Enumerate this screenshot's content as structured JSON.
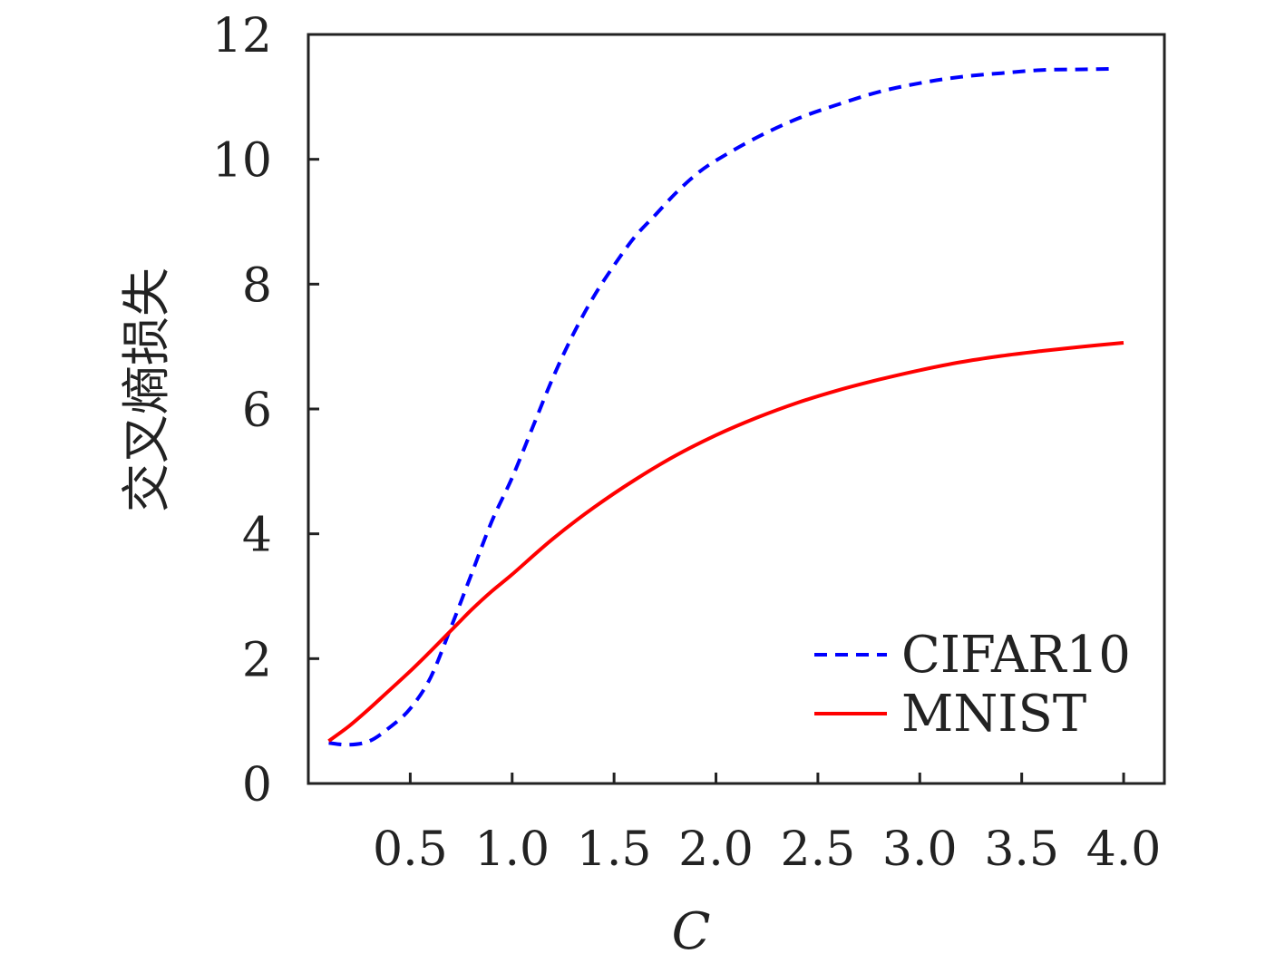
{
  "chart_data": {
    "type": "line",
    "xlabel": "C",
    "ylabel": "交叉熵损失",
    "xlim": [
      0.0,
      4.2
    ],
    "ylim": [
      0,
      12
    ],
    "x_ticks": [
      "0.5",
      "1.0",
      "1.5",
      "2.0",
      "2.5",
      "3.0",
      "3.5",
      "4.0"
    ],
    "y_ticks": [
      "0",
      "2",
      "4",
      "6",
      "8",
      "10",
      "12"
    ],
    "grid": false,
    "legend_position": "bottom-right",
    "series": [
      {
        "name": "CIFAR10",
        "color": "#0000ff",
        "style": "dashed",
        "x": [
          0.1,
          0.2,
          0.3,
          0.4,
          0.5,
          0.6,
          0.7,
          0.8,
          0.9,
          1.0,
          1.1,
          1.2,
          1.3,
          1.4,
          1.5,
          1.6,
          1.7,
          1.8,
          1.9,
          2.0,
          2.2,
          2.4,
          2.6,
          2.8,
          3.0,
          3.2,
          3.4,
          3.6,
          3.8,
          3.95
        ],
        "y": [
          0.65,
          0.62,
          0.68,
          0.9,
          1.2,
          1.7,
          2.5,
          3.35,
          4.2,
          4.9,
          5.7,
          6.5,
          7.2,
          7.8,
          8.3,
          8.75,
          9.1,
          9.45,
          9.75,
          9.98,
          10.35,
          10.65,
          10.88,
          11.08,
          11.22,
          11.32,
          11.38,
          11.43,
          11.44,
          11.45
        ]
      },
      {
        "name": "MNIST",
        "color": "#ff0000",
        "style": "solid",
        "x": [
          0.1,
          0.2,
          0.3,
          0.4,
          0.5,
          0.6,
          0.7,
          0.8,
          0.9,
          1.0,
          1.2,
          1.4,
          1.6,
          1.8,
          2.0,
          2.2,
          2.4,
          2.6,
          2.8,
          3.0,
          3.2,
          3.4,
          3.6,
          3.8,
          4.0
        ],
        "y": [
          0.68,
          0.92,
          1.2,
          1.5,
          1.8,
          2.12,
          2.45,
          2.78,
          3.08,
          3.35,
          3.92,
          4.42,
          4.86,
          5.25,
          5.58,
          5.86,
          6.1,
          6.3,
          6.47,
          6.62,
          6.75,
          6.85,
          6.93,
          7.0,
          7.06
        ]
      }
    ]
  }
}
